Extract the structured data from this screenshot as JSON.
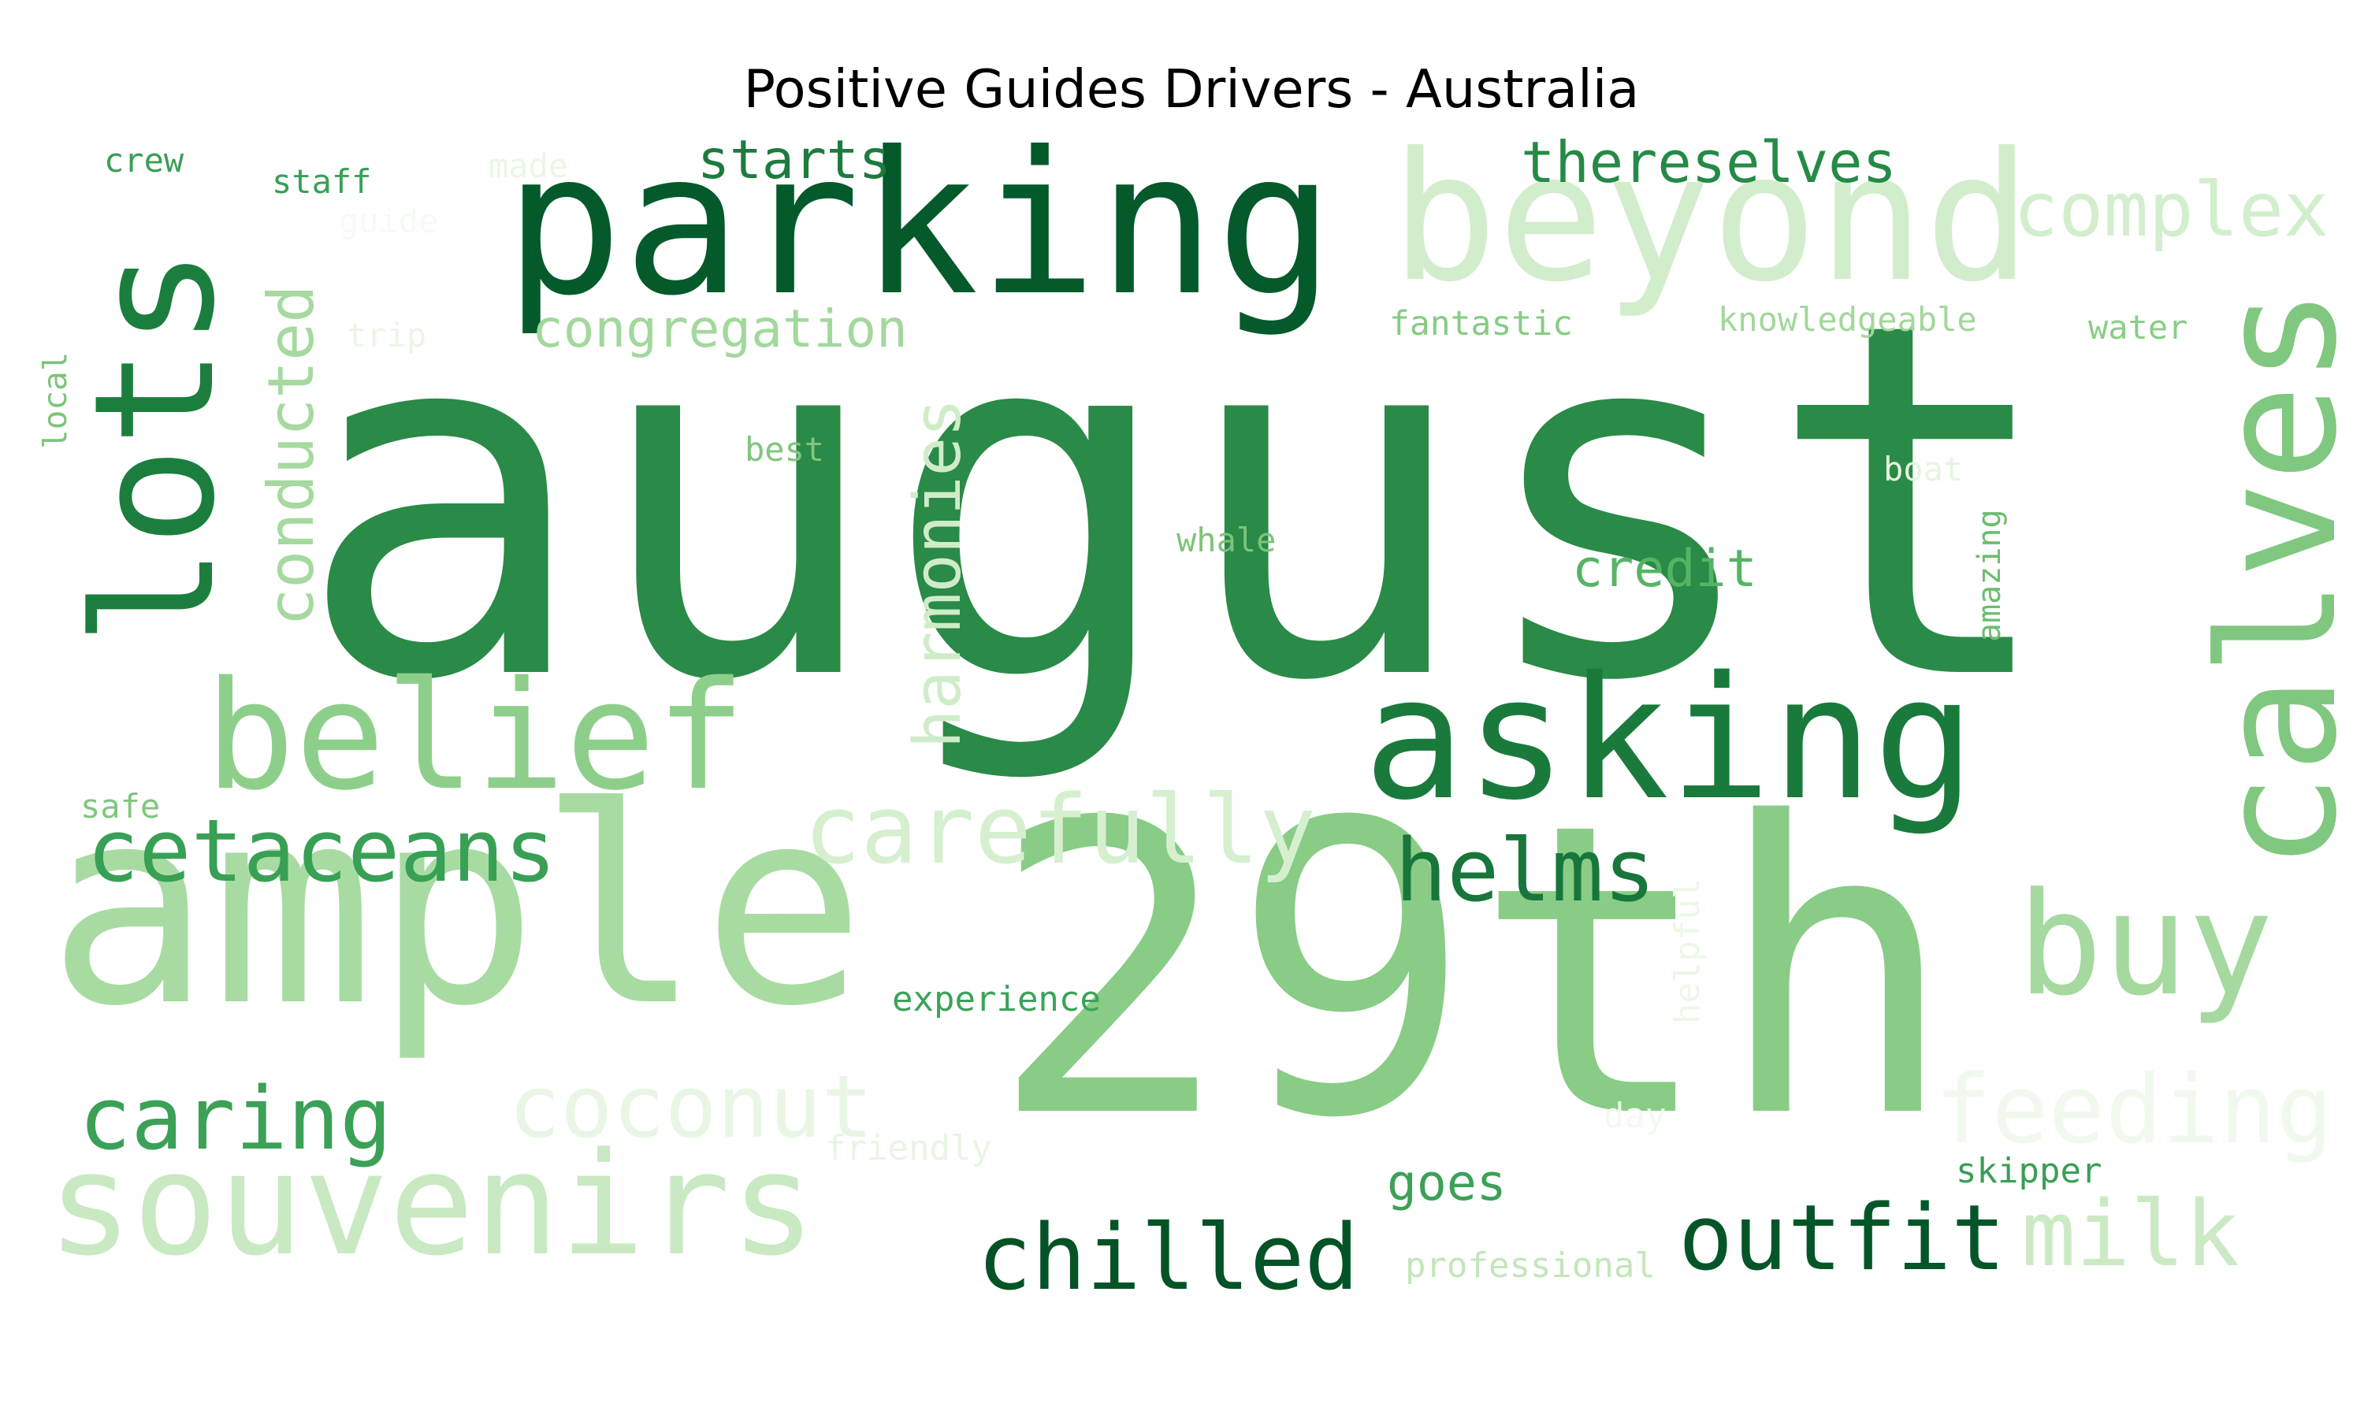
{
  "title": "Positive Guides Drivers - Australia",
  "words": [
    {
      "text": "august",
      "color": "#2a8a47"
    },
    {
      "text": "29th",
      "color": "#88cc86"
    },
    {
      "text": "ample",
      "color": "#a8dba2"
    },
    {
      "text": "parking",
      "color": "#045a2a"
    },
    {
      "text": "beyond",
      "color": "#d2edcb"
    },
    {
      "text": "asking",
      "color": "#1a7a3c"
    },
    {
      "text": "lots",
      "color": "#1c7e3e"
    },
    {
      "text": "calves",
      "color": "#80c77f"
    },
    {
      "text": "belief",
      "color": "#8dcf8a"
    },
    {
      "text": "souvenirs",
      "color": "#c8e9c1"
    },
    {
      "text": "buy",
      "color": "#a5d99f"
    },
    {
      "text": "carefully",
      "color": "#d6efcf"
    },
    {
      "text": "cetaceans",
      "color": "#37a055"
    },
    {
      "text": "helms",
      "color": "#19763b"
    },
    {
      "text": "outfit",
      "color": "#045628"
    },
    {
      "text": "chilled",
      "color": "#035326"
    },
    {
      "text": "caring",
      "color": "#3aa157"
    },
    {
      "text": "coconut",
      "color": "#eaf6e5"
    },
    {
      "text": "milk",
      "color": "#cbeac4"
    },
    {
      "text": "feeding",
      "color": "#f1f9ee"
    },
    {
      "text": "complex",
      "color": "#d3eecd"
    },
    {
      "text": "thereselves",
      "color": "#258a46"
    },
    {
      "text": "starts",
      "color": "#1d7b3d"
    },
    {
      "text": "congregation",
      "color": "#a3d89d"
    },
    {
      "text": "conducted",
      "color": "#a6d99f"
    },
    {
      "text": "harmonies",
      "color": "#cfecc8"
    },
    {
      "text": "credit",
      "color": "#55b463"
    },
    {
      "text": "goes",
      "color": "#3ba157"
    },
    {
      "text": "experience",
      "color": "#3ba358"
    },
    {
      "text": "helpful",
      "color": "#ecf7e8"
    },
    {
      "text": "friendly",
      "color": "#e8f5e3"
    },
    {
      "text": "professional",
      "color": "#c2e6ba"
    },
    {
      "text": "skipper",
      "color": "#3a9e56"
    },
    {
      "text": "day",
      "color": "#f2faef"
    },
    {
      "text": "fantastic",
      "color": "#87cb84"
    },
    {
      "text": "knowledgeable",
      "color": "#a2d79b"
    },
    {
      "text": "water",
      "color": "#8bcc86"
    },
    {
      "text": "boat",
      "color": "#e5f4df"
    },
    {
      "text": "amazing",
      "color": "#6bbd6e"
    },
    {
      "text": "whale",
      "color": "#7cc479"
    },
    {
      "text": "best",
      "color": "#80c67c"
    },
    {
      "text": "trip",
      "color": "#eaf6e5"
    },
    {
      "text": "guide",
      "color": "#f4fbf1"
    },
    {
      "text": "made",
      "color": "#eaf6e5"
    },
    {
      "text": "staff",
      "color": "#37a055"
    },
    {
      "text": "crew",
      "color": "#3a9e56"
    },
    {
      "text": "local",
      "color": "#7cc479"
    },
    {
      "text": "safe",
      "color": "#7fc67c"
    }
  ]
}
